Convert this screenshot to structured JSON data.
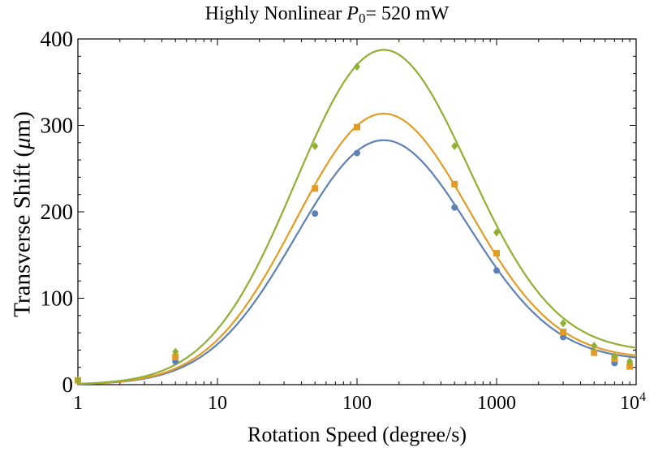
{
  "title": {
    "prefix": "Highly Nonlinear ",
    "var": "P",
    "sub": "0",
    "suffix": "= 520 mW"
  },
  "xlabel": "Rotation Speed (degree/s)",
  "ylabel": {
    "prefix": "Transverse Shift (",
    "mu": "μ",
    "suffix": "m)"
  },
  "chart_data": {
    "type": "scatter",
    "title": "Highly Nonlinear P0= 520 mW",
    "xlabel": "Rotation Speed (degree/s)",
    "ylabel": "Transverse Shift (μm)",
    "xscale": "log",
    "xlim": [
      1,
      10000
    ],
    "ylim": [
      0,
      400
    ],
    "xticks": [
      {
        "value": 1,
        "label": "1"
      },
      {
        "value": 10,
        "label": "10"
      },
      {
        "value": 100,
        "label": "100"
      },
      {
        "value": 1000,
        "label": "1000"
      },
      {
        "value": 10000,
        "label": "10",
        "sup": "4"
      }
    ],
    "yticks": [
      {
        "value": 0,
        "label": "0"
      },
      {
        "value": 100,
        "label": "100"
      },
      {
        "value": 200,
        "label": "200"
      },
      {
        "value": 300,
        "label": "300"
      },
      {
        "value": 400,
        "label": "400"
      }
    ],
    "grid": false,
    "legend": "none",
    "series": [
      {
        "color": "#5E81B5",
        "marker": "circle",
        "x": [
          1,
          5,
          50,
          100,
          500,
          1000,
          3000,
          5000,
          7000,
          9000
        ],
        "y": [
          5,
          27,
          198,
          268,
          205,
          132,
          55,
          37,
          25,
          23
        ],
        "fit": {
          "peak_x": 150,
          "peak_y": 273,
          "width_decades": 0.62,
          "baseline": 28
        }
      },
      {
        "color": "#E19C24",
        "marker": "square",
        "x": [
          1,
          5,
          50,
          100,
          500,
          1000,
          3000,
          5000,
          7000,
          9000
        ],
        "y": [
          5,
          32,
          227,
          298,
          232,
          152,
          61,
          37,
          30,
          21
        ],
        "fit": {
          "peak_x": 150,
          "peak_y": 303,
          "width_decades": 0.62,
          "baseline": 30
        }
      },
      {
        "color": "#8FB032",
        "marker": "diamond",
        "x": [
          1,
          5,
          50,
          100,
          500,
          1000,
          3000,
          5000,
          7000,
          9000
        ],
        "y": [
          5,
          38,
          276,
          368,
          276,
          176,
          71,
          45,
          33,
          27
        ],
        "fit": {
          "peak_x": 150,
          "peak_y": 374,
          "width_decades": 0.62,
          "baseline": 38
        }
      }
    ]
  }
}
